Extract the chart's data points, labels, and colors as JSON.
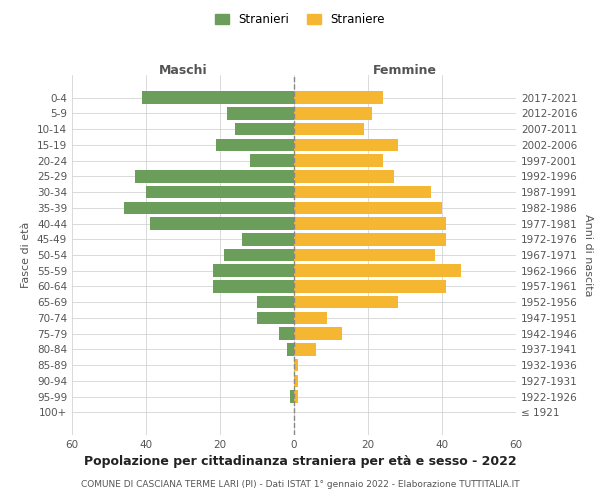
{
  "age_groups": [
    "100+",
    "95-99",
    "90-94",
    "85-89",
    "80-84",
    "75-79",
    "70-74",
    "65-69",
    "60-64",
    "55-59",
    "50-54",
    "45-49",
    "40-44",
    "35-39",
    "30-34",
    "25-29",
    "20-24",
    "15-19",
    "10-14",
    "5-9",
    "0-4"
  ],
  "birth_years": [
    "≤ 1921",
    "1922-1926",
    "1927-1931",
    "1932-1936",
    "1937-1941",
    "1942-1946",
    "1947-1951",
    "1952-1956",
    "1957-1961",
    "1962-1966",
    "1967-1971",
    "1972-1976",
    "1977-1981",
    "1982-1986",
    "1987-1991",
    "1992-1996",
    "1997-2001",
    "2002-2006",
    "2007-2011",
    "2012-2016",
    "2017-2021"
  ],
  "maschi": [
    0,
    1,
    0,
    0,
    2,
    4,
    10,
    10,
    22,
    22,
    19,
    14,
    39,
    46,
    40,
    43,
    12,
    21,
    16,
    18,
    41
  ],
  "femmine": [
    0,
    1,
    1,
    1,
    6,
    13,
    9,
    28,
    41,
    45,
    38,
    41,
    41,
    40,
    37,
    27,
    24,
    28,
    19,
    21,
    24
  ],
  "male_color": "#6a9e5a",
  "female_color": "#f5b731",
  "center_line_color": "#888888",
  "background_color": "#ffffff",
  "grid_color": "#cccccc",
  "title": "Popolazione per cittadinanza straniera per età e sesso - 2022",
  "subtitle": "COMUNE DI CASCIANA TERME LARI (PI) - Dati ISTAT 1° gennaio 2022 - Elaborazione TUTTITALIA.IT",
  "ylabel_left": "Fasce di età",
  "ylabel_right": "Anni di nascita",
  "xlabel_left": "Maschi",
  "xlabel_right": "Femmine",
  "legend_maschi": "Stranieri",
  "legend_femmine": "Straniere",
  "xlim": 60,
  "bar_height": 0.8
}
